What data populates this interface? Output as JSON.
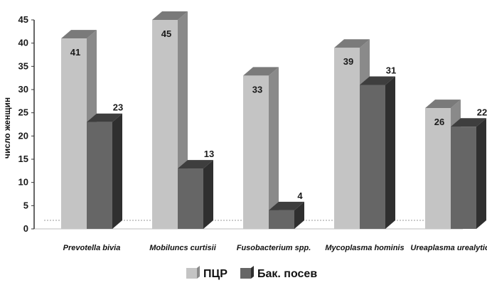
{
  "chart_data": {
    "type": "bar",
    "style": "3d-clustered",
    "categories": [
      "Prevotella bivia",
      "Mobiluncs curtisii",
      "Fusobacterium spp.",
      "Mycoplasma hominis",
      "Ureaplasma urealyticum"
    ],
    "series": [
      {
        "name": "ПЦР",
        "values": [
          41,
          45,
          33,
          39,
          26
        ],
        "color": "#c4c4c4",
        "side_color": "#8a8a8a",
        "top_color": "#7a7a7a"
      },
      {
        "name": "Бак. посев",
        "values": [
          23,
          13,
          4,
          31,
          22
        ],
        "color": "#666666",
        "side_color": "#2f2f2f",
        "top_color": "#3e3e3e"
      }
    ],
    "ylabel": "число женщин",
    "xlabel": "",
    "ylim": [
      0,
      45
    ],
    "yticks": [
      0,
      5,
      10,
      15,
      20,
      25,
      30,
      35,
      40,
      45
    ],
    "grid": false,
    "legend_position": "bottom-center",
    "data_labels": true
  }
}
